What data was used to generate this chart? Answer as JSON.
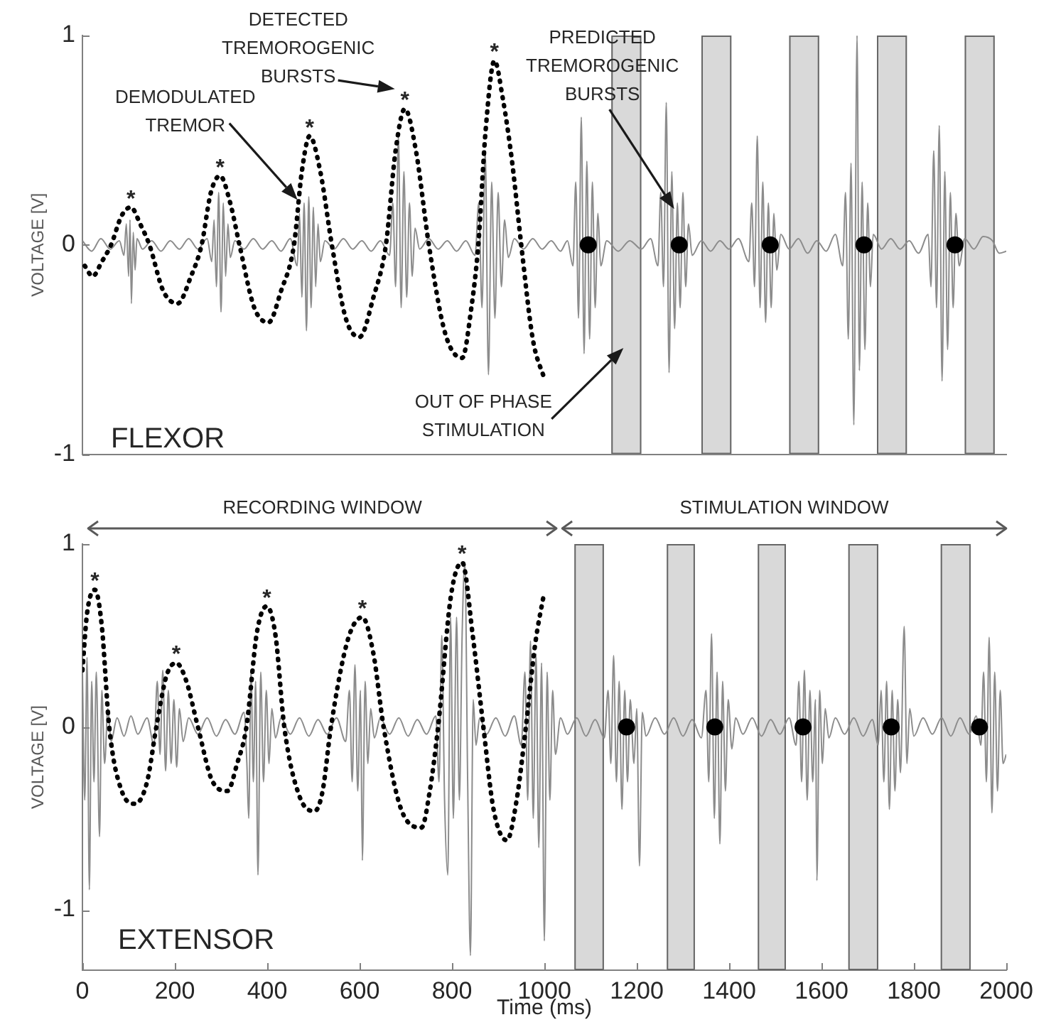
{
  "chart_data": [
    {
      "type": "line",
      "ylabel": "VOLTAGE [V]",
      "xlim": [
        0,
        2000
      ],
      "ylim": [
        -1,
        1
      ],
      "yticks": [
        -1,
        0,
        1
      ],
      "tick_labels": "y",
      "series": [
        {
          "type": "line",
          "color": "#8c8c8c",
          "x": [
            0,
            20,
            40,
            60,
            80,
            90,
            95,
            100,
            103,
            106,
            110,
            114,
            118,
            130,
            150,
            170,
            190,
            210,
            230,
            250,
            270,
            280,
            285,
            290,
            295,
            300,
            305,
            310,
            315,
            320,
            330,
            350,
            370,
            390,
            410,
            430,
            450,
            465,
            470,
            475,
            480,
            485,
            490,
            495,
            500,
            505,
            510,
            515,
            525,
            545,
            565,
            585,
            605,
            625,
            645,
            665,
            672,
            678,
            684,
            690,
            696,
            702,
            708,
            714,
            720,
            730,
            750,
            770,
            790,
            810,
            830,
            850,
            858,
            865,
            872,
            879,
            886,
            893,
            900,
            907,
            914,
            922,
            935,
            955,
            975,
            995,
            1015,
            1035,
            1050,
            1062,
            1068,
            1074,
            1080,
            1086,
            1092,
            1098,
            1104,
            1110,
            1116,
            1122,
            1135,
            1160,
            1185,
            1210,
            1230,
            1246,
            1252,
            1258,
            1264,
            1270,
            1276,
            1282,
            1288,
            1294,
            1300,
            1306,
            1312,
            1320,
            1340,
            1360,
            1380,
            1400,
            1420,
            1443,
            1449,
            1455,
            1461,
            1467,
            1473,
            1479,
            1485,
            1491,
            1497,
            1503,
            1512,
            1530,
            1550,
            1570,
            1590,
            1610,
            1630,
            1646,
            1652,
            1658,
            1664,
            1670,
            1677,
            1682,
            1688,
            1694,
            1700,
            1706,
            1712,
            1730,
            1750,
            1770,
            1790,
            1810,
            1831,
            1837,
            1843,
            1849,
            1855,
            1861,
            1867,
            1873,
            1879,
            1885,
            1891,
            1898,
            1910,
            1930,
            1950,
            1970,
            1985,
            2000
          ],
          "values": [
            0.02,
            -0.03,
            0.03,
            -0.02,
            0.02,
            -0.05,
            0.1,
            -0.15,
            0.12,
            -0.28,
            0.06,
            -0.12,
            0.03,
            -0.02,
            0.02,
            -0.03,
            0.02,
            -0.02,
            0.03,
            -0.02,
            0.03,
            -0.08,
            0.12,
            -0.2,
            0.25,
            -0.32,
            0.2,
            -0.15,
            0.1,
            -0.06,
            0.02,
            -0.02,
            0.03,
            -0.02,
            0.02,
            -0.03,
            0.03,
            -0.1,
            0.15,
            -0.25,
            0.2,
            -0.41,
            0.23,
            -0.3,
            0.18,
            -0.2,
            0.1,
            -0.08,
            0.02,
            -0.02,
            0.03,
            -0.02,
            0.02,
            -0.03,
            0.02,
            -0.05,
            0.2,
            -0.2,
            0.52,
            -0.3,
            0.35,
            -0.25,
            0.2,
            -0.15,
            0.08,
            -0.02,
            0.03,
            -0.02,
            0.02,
            -0.03,
            0.02,
            -0.05,
            0.2,
            -0.3,
            0.45,
            -0.62,
            0.3,
            -0.35,
            0.25,
            -0.2,
            0.12,
            -0.06,
            0.03,
            -0.02,
            0.03,
            -0.02,
            0.02,
            -0.03,
            0.02,
            -0.1,
            0.3,
            -0.35,
            0.61,
            -0.52,
            0.4,
            -0.45,
            0.3,
            -0.3,
            0.15,
            -0.1,
            0.02,
            -0.03,
            0.02,
            -0.02,
            0.03,
            -0.1,
            0.25,
            -0.2,
            0.68,
            -0.61,
            0.35,
            -0.4,
            0.2,
            -0.3,
            0.25,
            -0.2,
            0.1,
            -0.05,
            0.02,
            -0.03,
            0.02,
            -0.02,
            0.03,
            -0.08,
            0.2,
            -0.2,
            0.52,
            -0.3,
            0.3,
            -0.37,
            0.2,
            -0.3,
            0.15,
            -0.12,
            0.05,
            -0.02,
            0.03,
            -0.04,
            0.02,
            -0.03,
            0.05,
            -0.1,
            0.25,
            -0.45,
            0.39,
            -0.86,
            1.0,
            -0.6,
            0.3,
            -0.5,
            0.2,
            -0.2,
            0.05,
            -0.02,
            0.03,
            -0.02,
            0.02,
            -0.04,
            0.05,
            -0.2,
            0.45,
            -0.3,
            0.57,
            -0.65,
            0.35,
            -0.5,
            0.25,
            -0.3,
            0.15,
            -0.1,
            0.03,
            -0.02,
            0.04,
            0.02,
            -0.04,
            -0.03
          ]
        },
        {
          "type": "line",
          "color": "#000000",
          "line_style": "dotted",
          "x": [
            5,
            22,
            42,
            62,
            85,
            105,
            125,
            145,
            175,
            206,
            235,
            258,
            278,
            298,
            320,
            340,
            372,
            403,
            430,
            458,
            475,
            492,
            515,
            540,
            570,
            600,
            630,
            657,
            678,
            698,
            722,
            750,
            785,
            822,
            842,
            857,
            873,
            892,
            910,
            930,
            950,
            975,
            1000
          ],
          "values": [
            -0.1,
            -0.15,
            -0.08,
            0.0,
            0.14,
            0.18,
            0.1,
            0.0,
            -0.22,
            -0.28,
            -0.15,
            0.0,
            0.25,
            0.33,
            0.2,
            0.0,
            -0.3,
            -0.37,
            -0.22,
            0.0,
            0.35,
            0.52,
            0.35,
            0.0,
            -0.35,
            -0.44,
            -0.25,
            0.0,
            0.45,
            0.65,
            0.45,
            0.0,
            -0.42,
            -0.54,
            -0.3,
            0.0,
            0.55,
            0.88,
            0.7,
            0.4,
            0.0,
            -0.45,
            -0.64
          ]
        },
        {
          "type": "scatter",
          "color": "#000000",
          "marker": "circle",
          "x": [
            1095,
            1292,
            1489,
            1692,
            1889
          ],
          "values": [
            0,
            0,
            0,
            0,
            0
          ]
        }
      ],
      "bands": [
        {
          "axis": "x",
          "from": 1145,
          "to": 1210,
          "color": "#d9d9d9"
        },
        {
          "axis": "x",
          "from": 1340,
          "to": 1405,
          "color": "#d9d9d9"
        },
        {
          "axis": "x",
          "from": 1530,
          "to": 1595,
          "color": "#d9d9d9"
        },
        {
          "axis": "x",
          "from": 1720,
          "to": 1785,
          "color": "#d9d9d9"
        },
        {
          "axis": "x",
          "from": 1910,
          "to": 1975,
          "color": "#d9d9d9"
        }
      ],
      "annotations": [
        {
          "text": "*",
          "x": 105,
          "y": 0.18
        },
        {
          "text": "*",
          "x": 298,
          "y": 0.33
        },
        {
          "text": "*",
          "x": 492,
          "y": 0.52
        },
        {
          "text": "*",
          "x": 698,
          "y": 0.65
        },
        {
          "text": "*",
          "x": 892,
          "y": 0.88
        },
        "DEMODULATED TREMOR",
        {
          "text": "DETECTED TREMOROGENIC BURSTS",
          "x": 698,
          "y": 0.65
        },
        {
          "text": "PREDICTED TREMOROGENIC BURSTS",
          "x": 1261,
          "y": 0.24
        },
        {
          "text": "OUT OF PHASE STIMULATION",
          "x": 1145,
          "y": -0.55
        },
        "FLEXOR"
      ]
    },
    {
      "type": "line",
      "ylabel": "VOLTAGE [V]",
      "xlabel": "Time (ms)",
      "xlim": [
        0,
        2000
      ],
      "ylim": [
        -1.33,
        1
      ],
      "xticks": [
        0,
        200,
        400,
        600,
        800,
        1000,
        1200,
        1400,
        1600,
        1800,
        2000
      ],
      "yticks": [
        -1,
        0,
        1
      ],
      "series": [
        {
          "type": "line",
          "color": "#8c8c8c",
          "x": [
            0,
            5,
            10,
            15,
            20,
            25,
            30,
            37,
            42,
            48,
            55,
            62,
            75,
            90,
            105,
            120,
            140,
            155,
            162,
            168,
            174,
            180,
            186,
            192,
            198,
            204,
            210,
            218,
            230,
            250,
            270,
            290,
            310,
            330,
            350,
            356,
            360,
            365,
            370,
            375,
            380,
            386,
            392,
            398,
            404,
            410,
            418,
            430,
            450,
            470,
            490,
            510,
            530,
            550,
            570,
            578,
            584,
            590,
            596,
            602,
            606,
            612,
            618,
            624,
            632,
            645,
            665,
            685,
            705,
            725,
            745,
            765,
            772,
            778,
            784,
            791,
            797,
            803,
            810,
            816,
            822,
            828,
            834,
            840,
            846,
            852,
            860,
            875,
            895,
            915,
            935,
            950,
            958,
            964,
            970,
            976,
            982,
            988,
            994,
            1000,
            1006,
            1012,
            1018,
            1024,
            1035,
            1050,
            1070,
            1090,
            1110,
            1130,
            1138,
            1144,
            1150,
            1156,
            1162,
            1168,
            1174,
            1180,
            1186,
            1194,
            1200,
            1206,
            1212,
            1220,
            1240,
            1260,
            1280,
            1300,
            1320,
            1340,
            1350,
            1356,
            1362,
            1368,
            1374,
            1380,
            1386,
            1392,
            1398,
            1406,
            1414,
            1430,
            1450,
            1470,
            1490,
            1510,
            1530,
            1545,
            1551,
            1557,
            1563,
            1569,
            1575,
            1581,
            1587,
            1590,
            1596,
            1602,
            1608,
            1616,
            1630,
            1650,
            1670,
            1690,
            1710,
            1723,
            1729,
            1735,
            1741,
            1747,
            1753,
            1759,
            1765,
            1771,
            1779,
            1785,
            1791,
            1800,
            1820,
            1840,
            1860,
            1880,
            1900,
            1920,
            1935,
            1945,
            1951,
            1957,
            1963,
            1969,
            1975,
            1981,
            1987,
            1993,
            2000
          ],
          "values": [
            0.3,
            -0.4,
            0.38,
            -0.89,
            0.25,
            -0.3,
            0.3,
            -0.6,
            0.2,
            -0.2,
            0.1,
            -0.08,
            0.05,
            -0.05,
            0.06,
            -0.04,
            0.05,
            -0.1,
            0.25,
            -0.15,
            0.31,
            -0.24,
            0.2,
            -0.2,
            0.15,
            -0.22,
            0.1,
            -0.08,
            0.05,
            -0.04,
            0.05,
            -0.05,
            0.04,
            -0.04,
            0.08,
            -0.2,
            -0.5,
            0.31,
            -0.3,
            0.25,
            -0.81,
            0.3,
            -0.3,
            0.2,
            -0.2,
            0.1,
            -0.06,
            0.05,
            -0.04,
            0.05,
            -0.05,
            0.04,
            -0.04,
            0.05,
            -0.08,
            0.2,
            -0.3,
            0.34,
            -0.35,
            0.2,
            -0.73,
            0.25,
            -0.2,
            0.1,
            -0.06,
            0.05,
            -0.04,
            0.05,
            -0.05,
            0.04,
            -0.04,
            0.06,
            -0.3,
            0.5,
            -0.4,
            -0.81,
            0.6,
            -0.5,
            0.6,
            -0.4,
            0.5,
            0.9,
            -0.3,
            -1.25,
            0.15,
            -0.1,
            0.05,
            -0.04,
            0.05,
            -0.05,
            0.06,
            -0.1,
            0.3,
            -0.4,
            0.47,
            -0.5,
            0.4,
            -0.66,
            0.35,
            -1.17,
            0.3,
            -0.4,
            0.2,
            -0.15,
            0.05,
            -0.04,
            0.05,
            -0.05,
            0.04,
            -0.06,
            0.2,
            -0.2,
            0.39,
            -0.3,
            0.25,
            -0.45,
            0.2,
            -0.3,
            0.15,
            -0.2,
            0.1,
            -0.76,
            0.08,
            -0.05,
            0.05,
            -0.04,
            0.05,
            -0.05,
            0.04,
            -0.06,
            0.2,
            -0.3,
            0.51,
            -0.5,
            0.3,
            -0.64,
            0.25,
            -0.35,
            0.15,
            -0.12,
            0.05,
            -0.04,
            0.05,
            -0.05,
            0.04,
            -0.04,
            0.05,
            -0.1,
            0.25,
            -0.3,
            0.31,
            -0.4,
            0.2,
            -0.3,
            0.15,
            -0.84,
            0.2,
            -0.2,
            0.1,
            -0.06,
            0.05,
            -0.04,
            0.05,
            -0.05,
            0.04,
            -0.1,
            0.2,
            -0.3,
            0.25,
            -0.45,
            0.2,
            -0.35,
            0.15,
            -0.25,
            0.55,
            -0.2,
            0.1,
            -0.05,
            0.05,
            -0.04,
            0.05,
            -0.05,
            0.05,
            -0.04,
            0.06,
            -0.1,
            0.3,
            -0.3,
            0.49,
            -0.47,
            0.3,
            -0.35,
            0.2,
            -0.2,
            -0.15
          ]
        },
        {
          "type": "line",
          "color": "#000000",
          "line_style": "dotted",
          "x": [
            0,
            10,
            27,
            42,
            58,
            85,
            114,
            140,
            160,
            182,
            203,
            225,
            250,
            282,
            314,
            335,
            355,
            378,
            399,
            418,
            437,
            470,
            503,
            520,
            538,
            575,
            606,
            630,
            652,
            690,
            734,
            752,
            770,
            798,
            822,
            845,
            868,
            890,
            919,
            940,
            960,
            980,
            1000
          ],
          "values": [
            0.31,
            0.62,
            0.75,
            0.55,
            0.0,
            -0.35,
            -0.42,
            -0.3,
            0.0,
            0.28,
            0.35,
            0.25,
            0.0,
            -0.3,
            -0.35,
            -0.2,
            0.0,
            0.52,
            0.66,
            0.5,
            0.0,
            -0.38,
            -0.46,
            -0.35,
            0.0,
            0.48,
            0.6,
            0.4,
            0.0,
            -0.45,
            -0.55,
            -0.35,
            0.0,
            0.72,
            0.9,
            0.5,
            0.0,
            -0.45,
            -0.62,
            -0.4,
            0.0,
            0.45,
            0.74
          ]
        },
        {
          "type": "scatter",
          "color": "#000000",
          "marker": "circle",
          "x": [
            1178,
            1369,
            1560,
            1751,
            1942
          ],
          "values": [
            0,
            0,
            0,
            0,
            0
          ]
        }
      ],
      "bands": [
        {
          "axis": "x",
          "from": 1065,
          "to": 1129,
          "color": "#d9d9d9"
        },
        {
          "axis": "x",
          "from": 1265,
          "to": 1326,
          "color": "#d9d9d9"
        },
        {
          "axis": "x",
          "from": 1462,
          "to": 1523,
          "color": "#d9d9d9"
        },
        {
          "axis": "x",
          "from": 1658,
          "to": 1723,
          "color": "#d9d9d9"
        },
        {
          "axis": "x",
          "from": 1858,
          "to": 1923,
          "color": "#d9d9d9"
        }
      ],
      "annotations": [
        {
          "text": "*",
          "x": 27,
          "y": 0.75
        },
        {
          "text": "*",
          "x": 203,
          "y": 0.35
        },
        {
          "text": "*",
          "x": 399,
          "y": 0.66
        },
        {
          "text": "*",
          "x": 606,
          "y": 0.6
        },
        {
          "text": "*",
          "x": 822,
          "y": 0.9
        },
        "RECORDING WINDOW",
        "STIMULATION WINDOW",
        "EXTENSOR"
      ]
    }
  ]
}
